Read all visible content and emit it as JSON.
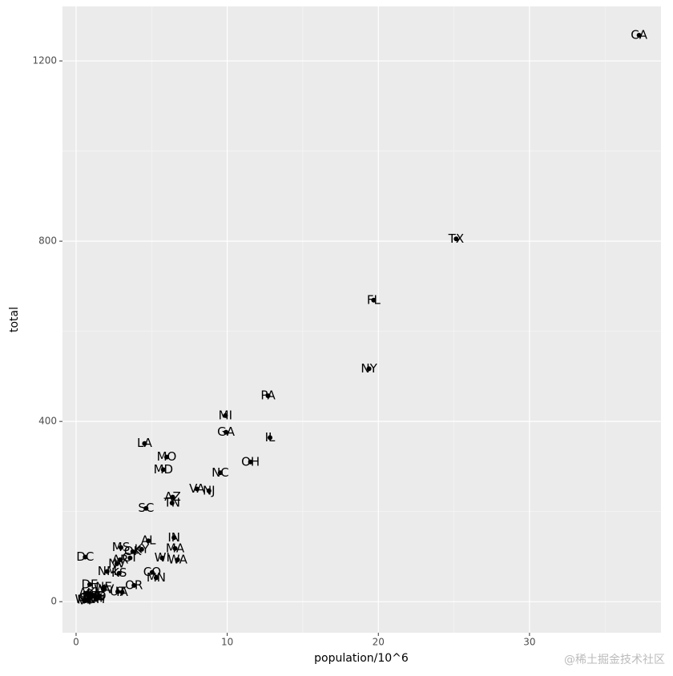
{
  "chart_data": {
    "type": "scatter",
    "xlabel": "population/10^6",
    "ylabel": "total",
    "labels": [
      "AL",
      "AK",
      "AZ",
      "AR",
      "CA",
      "CO",
      "CT",
      "DE",
      "DC",
      "FL",
      "GA",
      "HI",
      "ID",
      "IL",
      "IN",
      "IA",
      "KS",
      "KY",
      "LA",
      "ME",
      "MD",
      "MA",
      "MI",
      "MN",
      "MS",
      "MO",
      "MT",
      "NE",
      "NV",
      "NH",
      "NJ",
      "NM",
      "NY",
      "NC",
      "ND",
      "OH",
      "OK",
      "OR",
      "PA",
      "RI",
      "SC",
      "SD",
      "TN",
      "TX",
      "UT",
      "VT",
      "VA",
      "WA",
      "WV",
      "WI",
      "WY"
    ],
    "x": [
      4.78,
      0.71,
      6.39,
      2.92,
      37.25,
      5.03,
      3.57,
      0.9,
      0.6,
      19.69,
      9.92,
      1.36,
      1.57,
      12.83,
      6.48,
      3.05,
      2.85,
      4.34,
      4.53,
      1.33,
      5.77,
      6.55,
      9.88,
      5.3,
      2.97,
      5.99,
      0.99,
      1.83,
      2.7,
      1.32,
      8.79,
      2.06,
      19.38,
      9.54,
      0.67,
      11.54,
      3.75,
      3.83,
      12.7,
      1.05,
      4.63,
      0.81,
      6.35,
      25.15,
      2.76,
      0.63,
      8.0,
      6.72,
      1.85,
      5.69,
      0.56
    ],
    "values": [
      135,
      19,
      232,
      93,
      1257,
      65,
      97,
      38,
      99,
      669,
      376,
      7,
      12,
      364,
      142,
      21,
      63,
      116,
      351,
      11,
      293,
      118,
      413,
      53,
      120,
      321,
      12,
      32,
      84,
      5,
      246,
      67,
      517,
      286,
      4,
      310,
      111,
      36,
      457,
      16,
      207,
      8,
      219,
      805,
      22,
      2,
      250,
      93,
      27,
      97,
      5
    ],
    "color": "#000000",
    "xlim": [
      -0.9,
      38.7
    ],
    "ylim": [
      -69,
      1321
    ],
    "xticks": [
      0,
      10,
      20,
      30
    ],
    "yticks": [
      0,
      400,
      800,
      1200
    ],
    "grid": true,
    "watermark": "@稀土掘金技术社区"
  }
}
